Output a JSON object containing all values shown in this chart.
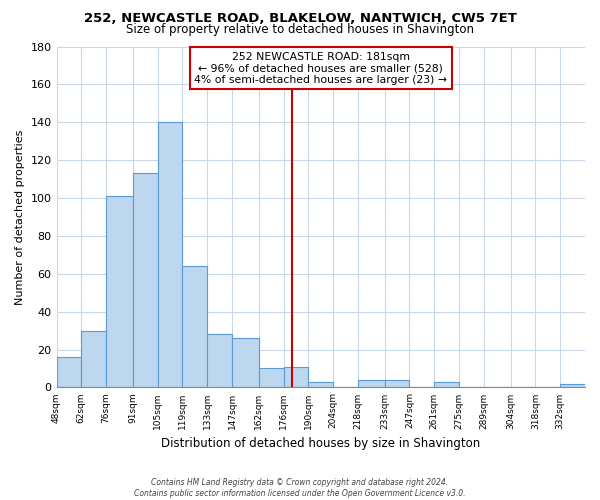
{
  "title": "252, NEWCASTLE ROAD, BLAKELOW, NANTWICH, CW5 7ET",
  "subtitle": "Size of property relative to detached houses in Shavington",
  "xlabel": "Distribution of detached houses by size in Shavington",
  "ylabel": "Number of detached properties",
  "bar_labels": [
    "48sqm",
    "62sqm",
    "76sqm",
    "91sqm",
    "105sqm",
    "119sqm",
    "133sqm",
    "147sqm",
    "162sqm",
    "176sqm",
    "190sqm",
    "204sqm",
    "218sqm",
    "233sqm",
    "247sqm",
    "261sqm",
    "275sqm",
    "289sqm",
    "304sqm",
    "318sqm",
    "332sqm"
  ],
  "bar_values": [
    16,
    30,
    101,
    113,
    140,
    64,
    28,
    26,
    10,
    11,
    3,
    0,
    4,
    4,
    0,
    3,
    0,
    0,
    0,
    0,
    2
  ],
  "bin_edges": [
    48,
    62,
    76,
    91,
    105,
    119,
    133,
    147,
    162,
    176,
    190,
    204,
    218,
    233,
    247,
    261,
    275,
    289,
    304,
    318,
    332,
    346
  ],
  "bar_color": "#BDD7EE",
  "bar_edge_color": "#5B9BD5",
  "reference_line_x": 181,
  "reference_line_color": "#CC0000",
  "annotation_title": "252 NEWCASTLE ROAD: 181sqm",
  "annotation_line1": "← 96% of detached houses are smaller (528)",
  "annotation_line2": "4% of semi-detached houses are larger (23) →",
  "annotation_box_facecolor": "#FFFFFF",
  "annotation_box_edgecolor": "#CC0000",
  "ylim": [
    0,
    180
  ],
  "yticks": [
    0,
    20,
    40,
    60,
    80,
    100,
    120,
    140,
    160,
    180
  ],
  "footer_line1": "Contains HM Land Registry data © Crown copyright and database right 2024.",
  "footer_line2": "Contains public sector information licensed under the Open Government Licence v3.0.",
  "bg_color": "#FFFFFF",
  "grid_color": "#C8D8E8",
  "title_fontsize": 9.5,
  "subtitle_fontsize": 8.5
}
